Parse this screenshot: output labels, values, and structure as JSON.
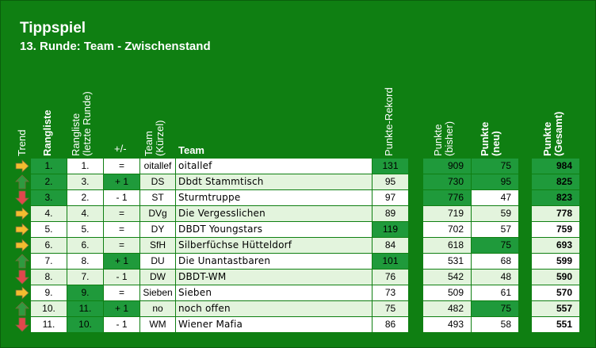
{
  "title": "Tippspiel",
  "subtitle": "13. Runde: Team - Zwischenstand",
  "headers": {
    "trend": "Trend",
    "rangliste": "Rangliste",
    "rangliste_letzte_1": "Rangliste",
    "rangliste_letzte_2": "(letzte Runde)",
    "plusminus": "+/-",
    "team_kurz_1": "Team",
    "team_kurz_2": "(Kürzel)",
    "team": "Team",
    "rekord": "Punkte-Rekord",
    "bisher_1": "Punkte",
    "bisher_2": "(bisher)",
    "neu_1": "Punkte",
    "neu_2": "(neu)",
    "gesamt_1": "Punkte",
    "gesamt_2": "(Gesamt)"
  },
  "colors": {
    "background": "#0f7f12",
    "row_light": "#e3f4dd",
    "row_white": "#ffffff",
    "highlight": "#1f9a3b",
    "arrow_up": "#2f9a3f",
    "arrow_down": "#e0474c",
    "arrow_right": "#f3bd2e"
  },
  "rows": [
    {
      "trend": "right",
      "rang": "1.",
      "letzte": "1.",
      "diff": "=",
      "kurz": "oitallef",
      "team": "oitallef",
      "rekord": "131",
      "bisher": "909",
      "neu": "75",
      "gesamt": "984",
      "hl": [
        "rang",
        "rekord",
        "bisher",
        "neu",
        "gesamt"
      ]
    },
    {
      "trend": "up",
      "rang": "2.",
      "letzte": "3.",
      "diff": "+ 1",
      "kurz": "DS",
      "team": "Dbdt Stammtisch",
      "rekord": "95",
      "bisher": "730",
      "neu": "95",
      "gesamt": "825",
      "hl": [
        "rang",
        "diff",
        "bisher",
        "neu",
        "gesamt"
      ]
    },
    {
      "trend": "down",
      "rang": "3.",
      "letzte": "2.",
      "diff": "- 1",
      "kurz": "ST",
      "team": "Sturmtruppe",
      "rekord": "97",
      "bisher": "776",
      "neu": "47",
      "gesamt": "823",
      "hl": [
        "rang",
        "bisher",
        "gesamt"
      ]
    },
    {
      "trend": "right",
      "rang": "4.",
      "letzte": "4.",
      "diff": "=",
      "kurz": "DVg",
      "team": "Die Vergesslichen",
      "rekord": "89",
      "bisher": "719",
      "neu": "59",
      "gesamt": "778",
      "hl": []
    },
    {
      "trend": "right",
      "rang": "5.",
      "letzte": "5.",
      "diff": "=",
      "kurz": "DY",
      "team": "DBDT Youngstars",
      "rekord": "119",
      "bisher": "702",
      "neu": "57",
      "gesamt": "759",
      "hl": [
        "rekord"
      ]
    },
    {
      "trend": "right",
      "rang": "6.",
      "letzte": "6.",
      "diff": "=",
      "kurz": "SfH",
      "team": "Silberfüchse Hütteldorf",
      "rekord": "84",
      "bisher": "618",
      "neu": "75",
      "gesamt": "693",
      "hl": [
        "neu"
      ]
    },
    {
      "trend": "up",
      "rang": "7.",
      "letzte": "8.",
      "diff": "+ 1",
      "kurz": "DU",
      "team": "Die Unantastbaren",
      "rekord": "101",
      "bisher": "531",
      "neu": "68",
      "gesamt": "599",
      "hl": [
        "diff",
        "rekord"
      ]
    },
    {
      "trend": "down",
      "rang": "8.",
      "letzte": "7.",
      "diff": "- 1",
      "kurz": "DW",
      "team": "DBDT-WM",
      "rekord": "76",
      "bisher": "542",
      "neu": "48",
      "gesamt": "590",
      "hl": []
    },
    {
      "trend": "right",
      "rang": "9.",
      "letzte": "9.",
      "diff": "=",
      "kurz": "Sieben",
      "team": "Sieben",
      "rekord": "73",
      "bisher": "509",
      "neu": "61",
      "gesamt": "570",
      "hl": [
        "letzte"
      ]
    },
    {
      "trend": "up",
      "rang": "10.",
      "letzte": "11.",
      "diff": "+ 1",
      "kurz": "no",
      "team": "noch offen",
      "rekord": "75",
      "bisher": "482",
      "neu": "75",
      "gesamt": "557",
      "hl": [
        "letzte",
        "diff",
        "neu"
      ]
    },
    {
      "trend": "down",
      "rang": "11.",
      "letzte": "10.",
      "diff": "- 1",
      "kurz": "WM",
      "team": "Wiener Mafia",
      "rekord": "86",
      "bisher": "493",
      "neu": "58",
      "gesamt": "551",
      "hl": [
        "letzte"
      ]
    }
  ]
}
